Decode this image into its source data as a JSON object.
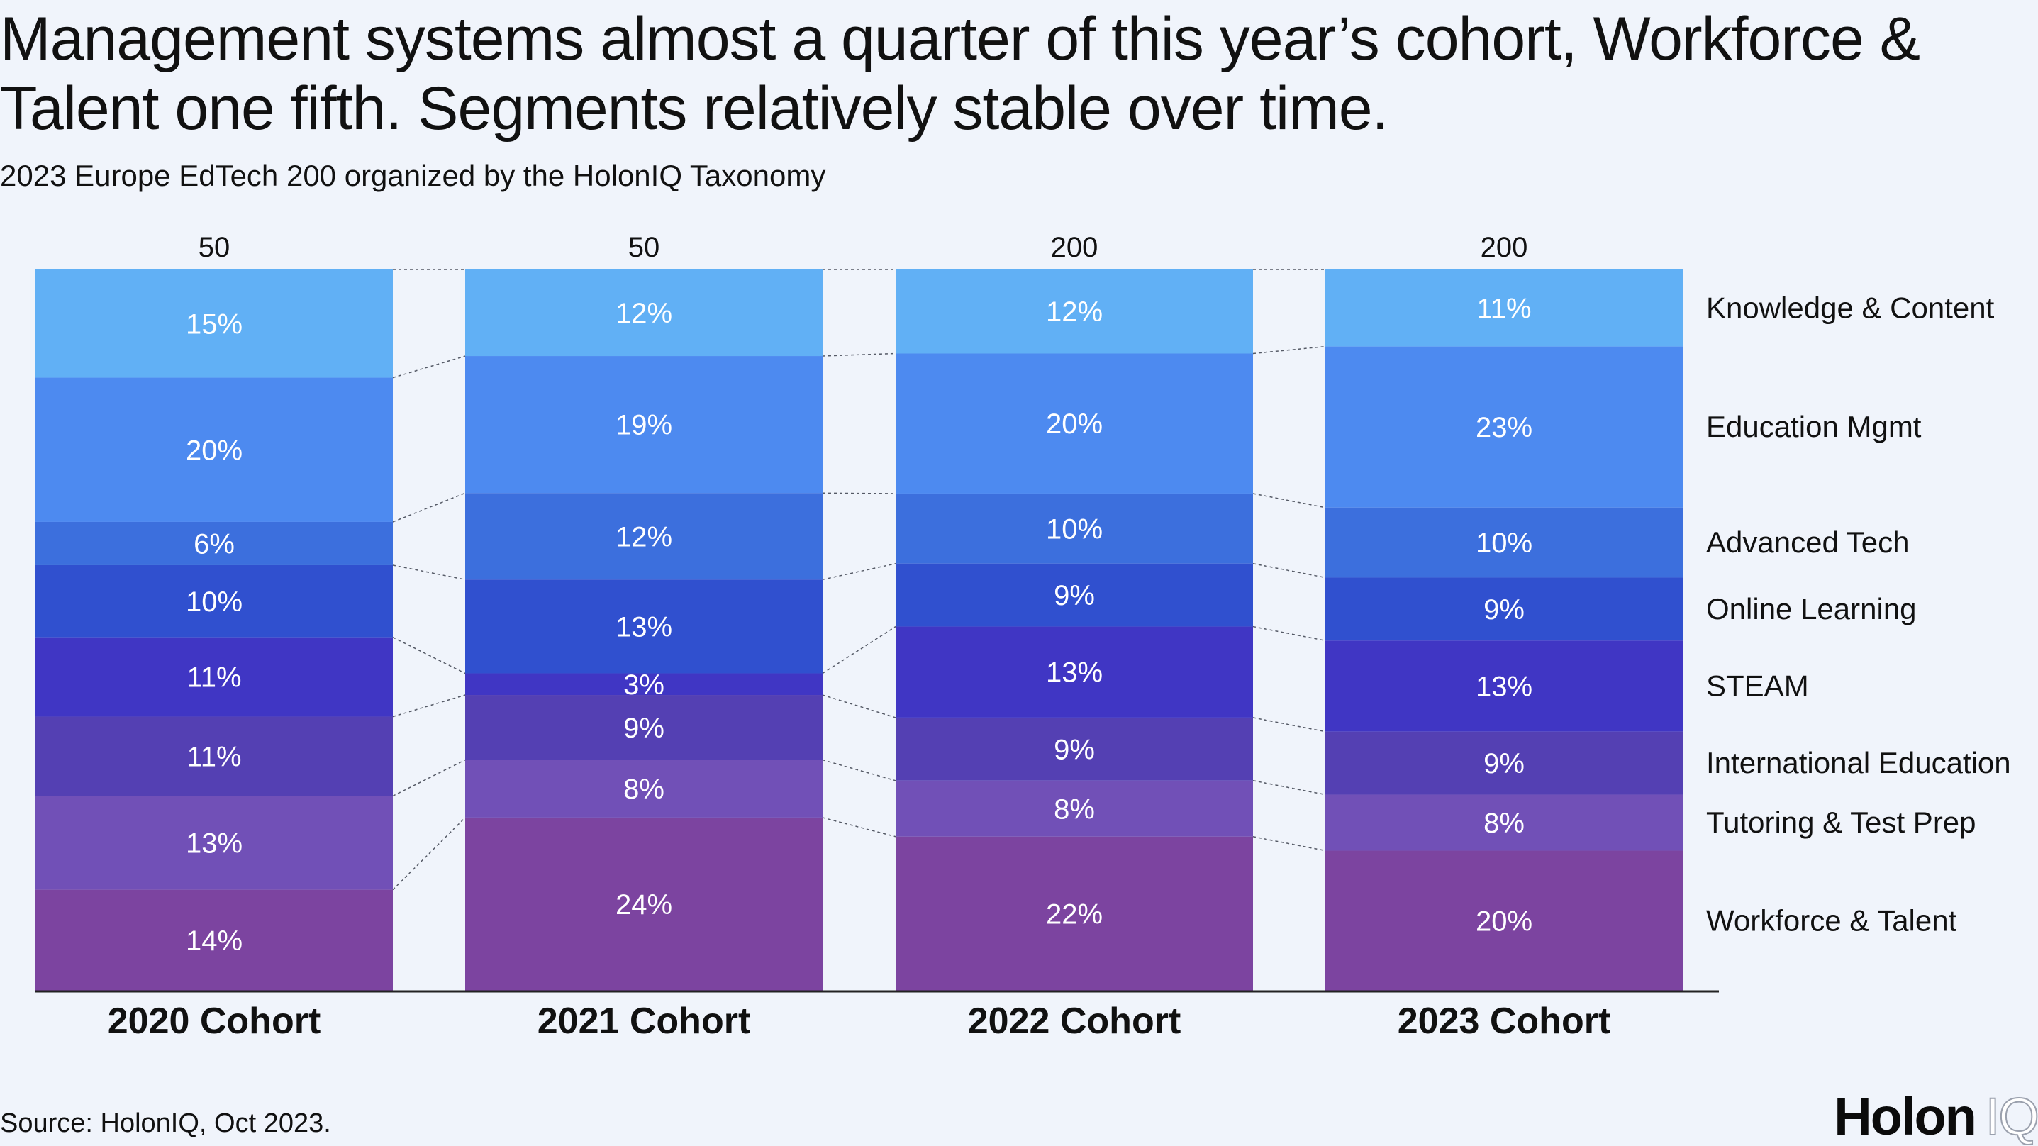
{
  "title": "Management systems almost a quarter of this year’s cohort, Workforce & Talent one fifth. Segments relatively stable over time.",
  "subtitle": "2023 Europe EdTech 200 organized by the HolonIQ Taxonomy",
  "source": "Source: HolonIQ, Oct 2023.",
  "logo": {
    "holon": "Holon",
    "iq": "IQ"
  },
  "colors": {
    "Knowledge & Content": "#61b0f5",
    "Education Mgmt": "#4d8af0",
    "Advanced Tech": "#3c6fdd",
    "Online Learning": "#3050cf",
    "STEAM": "#4036c4",
    "International Education": "#5440b3",
    "Tutoring & Test Prep": "#7150b7",
    "Workforce & Talent": "#7c44a0"
  },
  "chart_data": {
    "type": "bar",
    "stacked": "100%",
    "categories": [
      "2020 Cohort",
      "2021 Cohort",
      "2022 Cohort",
      "2023 Cohort"
    ],
    "totals": [
      "50",
      "50",
      "200",
      "200"
    ],
    "series": [
      {
        "name": "Knowledge & Content",
        "values": [
          15,
          12,
          12,
          11
        ],
        "labels": [
          "15%",
          "12%",
          "12%",
          "11%"
        ]
      },
      {
        "name": "Education Mgmt",
        "values": [
          20,
          19,
          20,
          23
        ],
        "labels": [
          "20%",
          "19%",
          "20%",
          "23%"
        ]
      },
      {
        "name": "Advanced Tech",
        "values": [
          6,
          12,
          10,
          10
        ],
        "labels": [
          "6%",
          "12%",
          "10%",
          "10%"
        ]
      },
      {
        "name": "Online Learning",
        "values": [
          10,
          13,
          9,
          9
        ],
        "labels": [
          "10%",
          "13%",
          "9%",
          "9%"
        ]
      },
      {
        "name": "STEAM",
        "values": [
          11,
          3,
          13,
          13
        ],
        "labels": [
          "11%",
          "3%",
          "13%",
          "13%"
        ]
      },
      {
        "name": "International Education",
        "values": [
          11,
          9,
          9,
          9
        ],
        "labels": [
          "11%",
          "9%",
          "9%",
          "9%"
        ]
      },
      {
        "name": "Tutoring & Test Prep",
        "values": [
          13,
          8,
          8,
          8
        ],
        "labels": [
          "13%",
          "8%",
          "8%",
          "8%"
        ]
      },
      {
        "name": "Workforce & Talent",
        "values": [
          14,
          24,
          22,
          20
        ],
        "labels": [
          "14%",
          "24%",
          "22%",
          "20%"
        ]
      }
    ],
    "legend": "right",
    "connector_lines": true
  }
}
